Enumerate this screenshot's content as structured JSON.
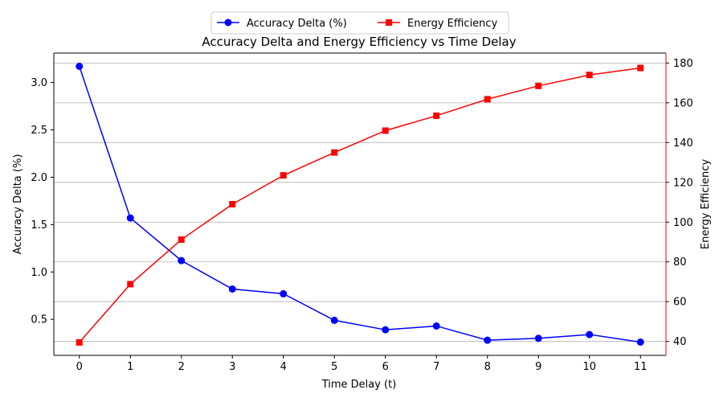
{
  "chart_data": {
    "type": "line",
    "title": "Accuracy Delta and Energy Efficiency vs Time Delay",
    "xlabel": "Time Delay (t)",
    "ylabel_left": "Accuracy Delta (%)",
    "ylabel_right": "Energy Efficiency",
    "x": [
      0,
      1,
      2,
      3,
      4,
      5,
      6,
      7,
      8,
      9,
      10,
      11
    ],
    "x_ticks": [
      "0",
      "1",
      "2",
      "3",
      "4",
      "5",
      "6",
      "7",
      "8",
      "9",
      "10",
      "11"
    ],
    "ylim_left": [
      0.12,
      3.31
    ],
    "yticks_left": [
      "0.5",
      "1.0",
      "1.5",
      "2.0",
      "2.5",
      "3.0"
    ],
    "yticks_left_values": [
      0.5,
      1.0,
      1.5,
      2.0,
      2.5,
      3.0
    ],
    "ylim_right": [
      33,
      185
    ],
    "yticks_right": [
      "40",
      "60",
      "80",
      "100",
      "120",
      "140",
      "160",
      "180"
    ],
    "yticks_right_values": [
      40,
      60,
      80,
      100,
      120,
      140,
      160,
      180
    ],
    "grid": "horizontal lines at right-axis ticks",
    "legend_placement": "top-center, above plot",
    "series": [
      {
        "name": "Accuracy Delta (%)",
        "axis": "left",
        "color": "#0000ff",
        "marker": "circle",
        "values": [
          3.17,
          1.57,
          1.12,
          0.82,
          0.77,
          0.49,
          0.39,
          0.43,
          0.28,
          0.3,
          0.34,
          0.26
        ]
      },
      {
        "name": "Energy Efficiency",
        "axis": "right",
        "color": "#ff0000",
        "marker": "square",
        "values": [
          39.5,
          68.8,
          91.2,
          109.0,
          123.5,
          135.0,
          146.0,
          153.5,
          161.8,
          168.5,
          174.0,
          177.5
        ]
      }
    ]
  }
}
